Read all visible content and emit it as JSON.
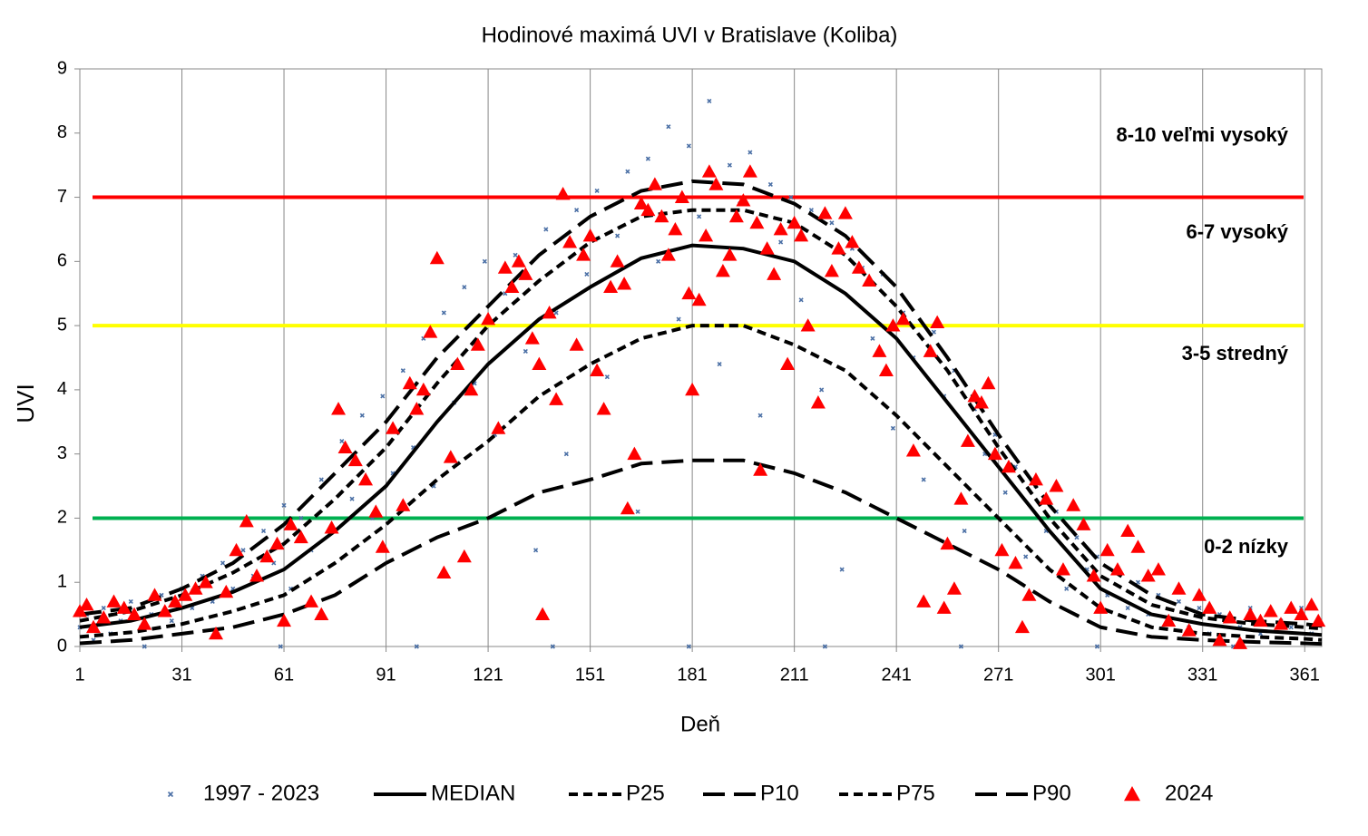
{
  "chart_data": {
    "type": "scatter",
    "title": "Hodinové maximá UVI v Bratislave (Koliba)",
    "x_label": "Deň",
    "y_label": "UVI",
    "xlim": [
      1,
      366
    ],
    "ylim": [
      0,
      9
    ],
    "xticks": [
      1,
      31,
      61,
      91,
      121,
      151,
      181,
      211,
      241,
      271,
      301,
      331,
      361
    ],
    "yticks": [
      0,
      1,
      2,
      3,
      4,
      5,
      6,
      7,
      8,
      9
    ],
    "grid": true,
    "legend": "bottom",
    "reference_lines": [
      {
        "value": 7,
        "color": "#ff0000"
      },
      {
        "value": 5,
        "color": "#ffff00"
      },
      {
        "value": 2,
        "color": "#00b050"
      }
    ],
    "zone_labels": [
      "8-10 veľmi vysoký",
      "6-7 vysoký",
      "3-5 stredný",
      "0-2 nízky"
    ],
    "series": [
      {
        "name": "1997 - 2023",
        "style": "points",
        "color": "#4a6fa5",
        "x": [
          1,
          3,
          5,
          8,
          10,
          13,
          16,
          19,
          22,
          25,
          28,
          31,
          34,
          37,
          40,
          43,
          46,
          49,
          52,
          55,
          58,
          61,
          63,
          66,
          69,
          72,
          75,
          78,
          81,
          84,
          87,
          90,
          93,
          96,
          99,
          102,
          105,
          108,
          111,
          114,
          117,
          120,
          123,
          126,
          129,
          132,
          135,
          138,
          141,
          144,
          147,
          150,
          153,
          156,
          159,
          162,
          165,
          168,
          171,
          174,
          177,
          180,
          183,
          186,
          189,
          192,
          195,
          198,
          201,
          204,
          207,
          210,
          213,
          216,
          219,
          222,
          225,
          228,
          231,
          234,
          237,
          240,
          243,
          246,
          249,
          252,
          255,
          258,
          261,
          264,
          267,
          270,
          273,
          276,
          279,
          282,
          285,
          288,
          291,
          294,
          297,
          300,
          303,
          306,
          309,
          312,
          315,
          318,
          321,
          324,
          327,
          330,
          333,
          336,
          339,
          342,
          345,
          348,
          351,
          354,
          357,
          360,
          363,
          365,
          20,
          60,
          100,
          140,
          180,
          220,
          260,
          300,
          340
        ],
        "values": [
          0.3,
          0.5,
          0.1,
          0.6,
          0.2,
          0.4,
          0.7,
          0.3,
          0.5,
          0.8,
          0.4,
          0.9,
          0.6,
          1.1,
          0.7,
          1.3,
          0.9,
          1.5,
          1.1,
          1.8,
          1.3,
          2.2,
          0.9,
          2.0,
          1.5,
          2.6,
          1.8,
          3.2,
          2.3,
          3.6,
          2.0,
          3.9,
          2.7,
          4.3,
          3.1,
          4.8,
          2.5,
          5.2,
          3.8,
          5.6,
          4.1,
          6.0,
          3.3,
          5.5,
          6.1,
          4.6,
          1.5,
          6.5,
          5.2,
          3.0,
          6.8,
          5.8,
          7.1,
          4.2,
          6.4,
          7.4,
          2.1,
          7.6,
          6.0,
          8.1,
          5.1,
          7.8,
          6.7,
          8.5,
          4.4,
          7.5,
          6.9,
          7.7,
          3.6,
          7.2,
          6.3,
          7.0,
          5.4,
          6.8,
          4.0,
          6.6,
          1.2,
          6.2,
          5.9,
          4.8,
          5.8,
          3.4,
          5.2,
          4.5,
          2.6,
          4.9,
          3.9,
          4.3,
          1.8,
          3.7,
          3.0,
          3.3,
          2.4,
          2.8,
          1.4,
          2.5,
          1.8,
          2.1,
          0.9,
          1.7,
          1.2,
          1.4,
          0.8,
          1.2,
          0.6,
          1.0,
          0.5,
          0.8,
          0.4,
          0.7,
          0.3,
          0.6,
          0.2,
          0.5,
          0.4,
          0.3,
          0.6,
          0.2,
          0.5,
          0.4,
          0.3,
          0.6,
          0.2,
          0.4,
          0,
          0,
          0,
          0,
          0,
          0,
          0,
          0,
          0
        ]
      },
      {
        "name": "MEDIAN",
        "style": "line",
        "dash": "solid",
        "color": "#000000",
        "x": [
          1,
          16,
          31,
          46,
          61,
          76,
          91,
          106,
          121,
          136,
          151,
          166,
          181,
          196,
          211,
          226,
          241,
          256,
          271,
          286,
          301,
          316,
          331,
          346,
          361,
          366
        ],
        "values": [
          0.3,
          0.4,
          0.6,
          0.85,
          1.2,
          1.8,
          2.5,
          3.5,
          4.4,
          5.1,
          5.6,
          6.05,
          6.25,
          6.2,
          6.0,
          5.5,
          4.8,
          3.8,
          2.8,
          1.8,
          0.9,
          0.5,
          0.35,
          0.25,
          0.2,
          0.18
        ]
      },
      {
        "name": "P25",
        "style": "line",
        "dash": "short",
        "color": "#000000",
        "x": [
          1,
          16,
          31,
          46,
          61,
          76,
          91,
          106,
          121,
          136,
          151,
          166,
          181,
          196,
          211,
          226,
          241,
          256,
          271,
          286,
          301,
          316,
          331,
          346,
          361,
          366
        ],
        "values": [
          0.15,
          0.22,
          0.35,
          0.55,
          0.8,
          1.3,
          1.9,
          2.6,
          3.2,
          3.9,
          4.4,
          4.8,
          5.0,
          5.0,
          4.7,
          4.3,
          3.6,
          2.8,
          2.0,
          1.2,
          0.6,
          0.3,
          0.2,
          0.15,
          0.12,
          0.1
        ]
      },
      {
        "name": "P10",
        "style": "line",
        "dash": "long",
        "color": "#000000",
        "x": [
          1,
          16,
          31,
          46,
          61,
          76,
          91,
          106,
          121,
          136,
          151,
          166,
          181,
          196,
          211,
          226,
          241,
          256,
          271,
          286,
          301,
          316,
          331,
          346,
          361,
          366
        ],
        "values": [
          0.05,
          0.1,
          0.2,
          0.3,
          0.5,
          0.8,
          1.3,
          1.7,
          2.0,
          2.4,
          2.6,
          2.85,
          2.9,
          2.9,
          2.7,
          2.4,
          2.0,
          1.6,
          1.2,
          0.7,
          0.3,
          0.15,
          0.1,
          0.07,
          0.05,
          0.04
        ]
      },
      {
        "name": "P75",
        "style": "line",
        "dash": "short",
        "color": "#000000",
        "x": [
          1,
          16,
          31,
          46,
          61,
          76,
          91,
          106,
          121,
          136,
          151,
          166,
          181,
          196,
          211,
          226,
          241,
          256,
          271,
          286,
          301,
          316,
          331,
          346,
          361,
          366
        ],
        "values": [
          0.4,
          0.55,
          0.8,
          1.15,
          1.6,
          2.3,
          3.1,
          4.1,
          5.0,
          5.7,
          6.3,
          6.7,
          6.8,
          6.8,
          6.6,
          6.1,
          5.3,
          4.3,
          3.1,
          2.0,
          1.1,
          0.65,
          0.45,
          0.35,
          0.3,
          0.28
        ]
      },
      {
        "name": "P90",
        "style": "line",
        "dash": "long",
        "color": "#000000",
        "x": [
          1,
          16,
          31,
          46,
          61,
          76,
          91,
          106,
          121,
          136,
          151,
          166,
          181,
          196,
          211,
          226,
          241,
          256,
          271,
          286,
          301,
          316,
          331,
          346,
          361,
          366
        ],
        "values": [
          0.5,
          0.6,
          0.9,
          1.3,
          1.9,
          2.7,
          3.5,
          4.5,
          5.3,
          6.1,
          6.7,
          7.1,
          7.25,
          7.2,
          6.9,
          6.4,
          5.6,
          4.5,
          3.3,
          2.2,
          1.3,
          0.8,
          0.5,
          0.4,
          0.35,
          0.32
        ]
      },
      {
        "name": "2024",
        "style": "triangles",
        "color": "#ff0000",
        "x": [
          1,
          3,
          5,
          8,
          11,
          14,
          17,
          20,
          23,
          26,
          29,
          32,
          35,
          38,
          41,
          44,
          47,
          50,
          53,
          56,
          59,
          61,
          63,
          66,
          69,
          72,
          75,
          77,
          79,
          82,
          85,
          88,
          90,
          93,
          96,
          98,
          100,
          102,
          104,
          106,
          108,
          110,
          112,
          114,
          116,
          118,
          121,
          124,
          126,
          128,
          130,
          132,
          134,
          136,
          137,
          139,
          141,
          143,
          145,
          147,
          149,
          151,
          153,
          155,
          157,
          159,
          161,
          162,
          164,
          166,
          168,
          170,
          172,
          174,
          176,
          178,
          180,
          181,
          183,
          185,
          186,
          188,
          190,
          192,
          194,
          196,
          198,
          200,
          201,
          203,
          205,
          207,
          209,
          211,
          213,
          215,
          218,
          220,
          222,
          224,
          226,
          228,
          230,
          233,
          236,
          238,
          240,
          243,
          246,
          249,
          251,
          253,
          255,
          256,
          258,
          260,
          262,
          264,
          266,
          268,
          270,
          272,
          274,
          276,
          278,
          280,
          282,
          285,
          288,
          290,
          293,
          296,
          299,
          301,
          303,
          306,
          309,
          312,
          315,
          318,
          321,
          324,
          327,
          330,
          333,
          336,
          339,
          342,
          345,
          348,
          351,
          354,
          357,
          360,
          363,
          365
        ],
        "values": [
          0.55,
          0.65,
          0.3,
          0.45,
          0.7,
          0.6,
          0.5,
          0.35,
          0.8,
          0.55,
          0.7,
          0.8,
          0.9,
          1.0,
          0.2,
          0.85,
          1.5,
          1.95,
          1.1,
          1.4,
          1.6,
          0.4,
          1.9,
          1.7,
          0.7,
          0.5,
          1.85,
          3.7,
          3.1,
          2.9,
          2.6,
          2.1,
          1.55,
          3.4,
          2.2,
          4.1,
          3.7,
          4.0,
          4.9,
          6.05,
          1.15,
          2.95,
          4.4,
          1.4,
          4.0,
          4.7,
          5.1,
          3.4,
          5.9,
          5.6,
          6.0,
          5.8,
          4.8,
          4.4,
          0.5,
          5.2,
          3.85,
          7.05,
          6.3,
          4.7,
          6.1,
          6.4,
          4.3,
          3.7,
          5.6,
          6.0,
          5.65,
          2.15,
          3.0,
          6.9,
          6.8,
          7.2,
          6.7,
          6.1,
          6.5,
          7.0,
          5.5,
          4.0,
          5.4,
          6.4,
          7.4,
          7.2,
          5.85,
          6.1,
          6.7,
          6.95,
          7.4,
          6.6,
          2.75,
          6.2,
          5.8,
          6.5,
          4.4,
          6.6,
          6.4,
          5.0,
          3.8,
          6.75,
          5.85,
          6.2,
          6.75,
          6.3,
          5.9,
          5.7,
          4.6,
          4.3,
          5.0,
          5.1,
          3.05,
          0.7,
          4.6,
          5.05,
          0.6,
          1.6,
          0.9,
          2.3,
          3.2,
          3.9,
          3.8,
          4.1,
          3.0,
          1.5,
          2.8,
          1.3,
          0.3,
          0.8,
          2.6,
          2.3,
          2.5,
          1.2,
          2.2,
          1.9,
          1.1,
          0.6,
          1.5,
          1.2,
          1.8,
          1.55,
          1.1,
          1.2,
          0.4,
          0.9,
          0.25,
          0.8,
          0.6,
          0.1,
          0.45,
          0.05,
          0.5,
          0.4,
          0.55,
          0.35,
          0.6,
          0.5,
          0.65,
          0.4
        ]
      }
    ]
  }
}
